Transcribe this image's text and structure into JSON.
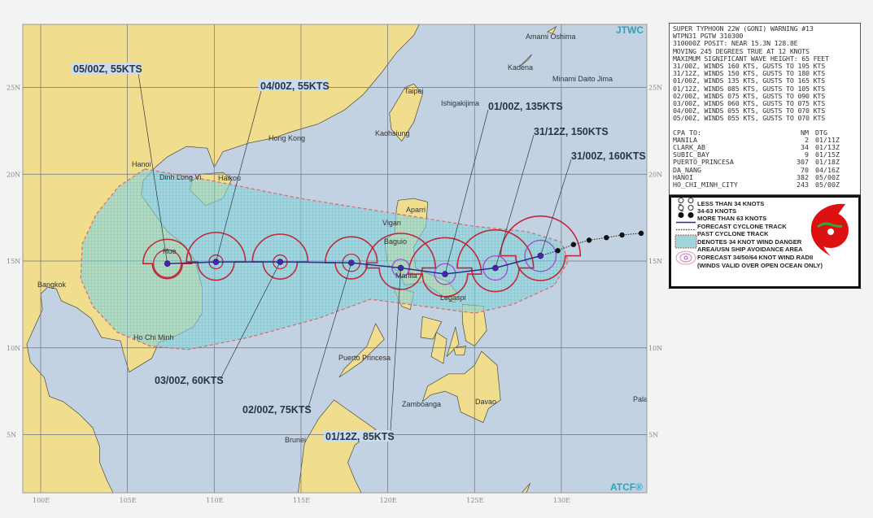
{
  "branding": {
    "top_right": "JTWC",
    "bottom_right": "ATCF®"
  },
  "colors": {
    "sea": "#c3d2e3",
    "land": "#f0dd8e",
    "danger_area": "#8fd3d8",
    "wind_radii": "#c0283a",
    "inner_radii": "#b040d0",
    "track": "#2a2f8a"
  },
  "warning": {
    "lines": [
      "SUPER TYPHOON 22W (GONI) WARNING #13",
      "WTPN31 PGTW 310300",
      "310000Z POSIT: NEAR 15.3N 128.8E",
      "MOVING 245 DEGREES TRUE AT 12 KNOTS",
      "MAXIMUM SIGNIFICANT WAVE HEIGHT: 65 FEET",
      "31/00Z, WINDS 160 KTS, GUSTS TO 195 KTS",
      "31/12Z, WINDS 150 KTS, GUSTS TO 180 KTS",
      "01/00Z, WINDS 135 KTS, GUSTS TO 165 KTS",
      "01/12Z, WINDS 085 KTS, GUSTS TO 105 KTS",
      "02/00Z, WINDS 075 KTS, GUSTS TO 090 KTS",
      "03/00Z, WINDS 060 KTS, GUSTS TO 075 KTS",
      "04/00Z, WINDS 055 KTS, GUSTS TO 070 KTS",
      "05/00Z, WINDS 055 KTS, GUSTS TO 070 KTS"
    ],
    "cpa": {
      "headers": [
        "CPA TO:",
        "NM",
        "DTG"
      ],
      "rows": [
        [
          "MANILA",
          "2",
          "01/11Z"
        ],
        [
          "CLARK_AB",
          "34",
          "01/13Z"
        ],
        [
          "SUBIC_BAY",
          "9",
          "01/15Z"
        ],
        [
          "PUERTO_PRINCESA",
          "307",
          "01/18Z"
        ],
        [
          "DA_NANG",
          "70",
          "04/16Z"
        ],
        [
          "HANOI",
          "382",
          "05/00Z"
        ],
        [
          "HO_CHI_MINH_CITY",
          "243",
          "05/00Z"
        ]
      ]
    }
  },
  "legend": {
    "items": [
      {
        "icon": "less-than-34-knots-icon",
        "label": "LESS THAN 34 KNOTS"
      },
      {
        "icon": "34-63-knots-icon",
        "label": "34-63 KNOTS"
      },
      {
        "icon": "more-than-63-knots-icon",
        "label": "MORE THAN 63 KNOTS"
      },
      {
        "icon": "forecast-track-line-icon",
        "label": "FORECAST CYCLONE TRACK"
      },
      {
        "icon": "past-track-dotted-icon",
        "label": "PAST CYCLONE TRACK"
      },
      {
        "icon": "danger-area-swatch-icon",
        "label": "DENOTES 34 KNOT WIND DANGER"
      },
      {
        "icon": "",
        "label": "AREA/USN SHIP AVOIDANCE AREA"
      },
      {
        "icon": "wind-radii-icon",
        "label": "FORECAST 34/50/64 KNOT WIND RADII"
      },
      {
        "icon": "",
        "label": "(WINDS VALID OVER OPEN OCEAN ONLY)"
      }
    ],
    "logo": "jtwc-logo-icon"
  },
  "forecast_track": [
    {
      "label": "31/00Z, 160KTS",
      "lon": 128.8,
      "lat": 15.3
    },
    {
      "label": "31/12Z, 150KTS",
      "lon": 126.2,
      "lat": 14.6
    },
    {
      "label": "01/00Z, 135KTS",
      "lon": 123.3,
      "lat": 14.25
    },
    {
      "label": "01/12Z, 85KTS",
      "lon": 120.75,
      "lat": 14.6
    },
    {
      "label": "02/00Z, 75KTS",
      "lon": 117.9,
      "lat": 14.9
    },
    {
      "label": "03/00Z, 60KTS",
      "lon": 113.8,
      "lat": 14.95
    },
    {
      "label": "04/00Z, 55KTS",
      "lon": 110.1,
      "lat": 14.95
    },
    {
      "label": "05/00Z, 55KTS",
      "lon": 107.3,
      "lat": 14.85
    }
  ],
  "past_track": [
    {
      "lon": 134.6,
      "lat": 16.6
    },
    {
      "lon": 133.5,
      "lat": 16.5
    },
    {
      "lon": 132.6,
      "lat": 16.35
    },
    {
      "lon": 131.6,
      "lat": 16.2
    },
    {
      "lon": 130.7,
      "lat": 15.95
    },
    {
      "lon": 129.8,
      "lat": 15.6
    }
  ],
  "cities": [
    "Amami Oshima",
    "Kadena",
    "Minami Daito Jima",
    "Taipei",
    "Ishigakijima",
    "Kaohsiung",
    "Hong Kong",
    "Hanoi",
    "Dinh Long Vi",
    "Haikou",
    "Aparri",
    "Vigan",
    "Baguio",
    "Manila",
    "Legaspi",
    "Hue",
    "Bangkok",
    "Ho Chi Minh",
    "Puerto Princesa",
    "Zamboanga",
    "Davao",
    "Brunei",
    "Pala"
  ],
  "axes": {
    "lat_labels": [
      "25N",
      "20N",
      "15N",
      "10N",
      "5N"
    ],
    "lon_labels": [
      "100E",
      "105E",
      "110E",
      "115E",
      "120E",
      "125E",
      "130E"
    ]
  }
}
